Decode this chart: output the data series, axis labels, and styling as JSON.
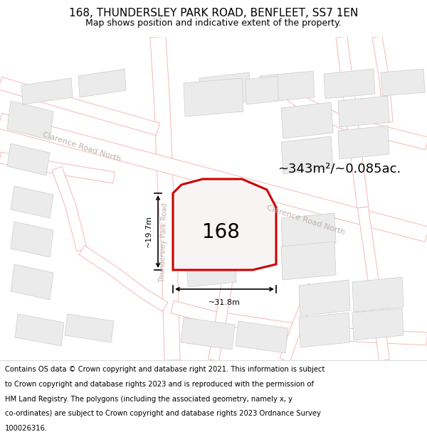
{
  "title_line1": "168, THUNDERSLEY PARK ROAD, BENFLEET, SS7 1EN",
  "title_line2": "Map shows position and indicative extent of the property.",
  "area_label": "~343m²/~0.085ac.",
  "dim_width_label": "~31.8m",
  "dim_height_label": "~19.7m",
  "property_number": "168",
  "road_label_clarence_upper": "Clarence Road North",
  "road_label_clarence_lower": "Clarence Road North",
  "road_label_thundersley": "Thundersley Park Road",
  "map_bg": "#ffffff",
  "road_line_color": "#f5b8b8",
  "building_fill": "#ebebeb",
  "building_edge": "#cccccc",
  "plot_outline_color": "#cc0000",
  "plot_fill": "#f5f0f0",
  "road_label_color": "#c0b0b0",
  "title_fontsize": 11,
  "subtitle_fontsize": 9,
  "footer_fontsize": 7.2,
  "footer_lines": [
    "Contains OS data © Crown copyright and database right 2021. This information is subject",
    "to Crown copyright and database rights 2023 and is reproduced with the permission of",
    "HM Land Registry. The polygons (including the associated geometry, namely x, y",
    "co-ordinates) are subject to Crown copyright and database rights 2023 Ordnance Survey",
    "100026316."
  ]
}
